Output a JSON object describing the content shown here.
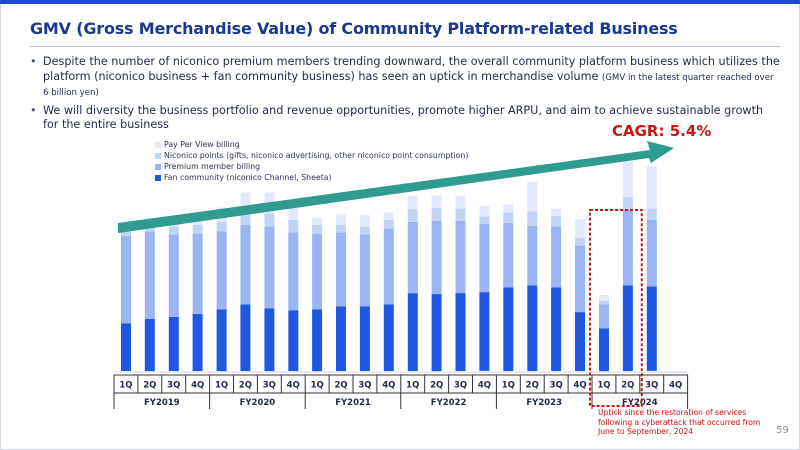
{
  "title": "GMV (Gross Merchandise Value) of Community Platform-related Business",
  "page_number": "59",
  "bullets": [
    {
      "text": "Despite the number of niconico premium members trending downward, the overall community platform business which utilizes the platform (niconico business + fan community business) has seen an uptick in merchandise volume ",
      "small": "(GMV in the latest quarter reached over 6 billion yen)"
    },
    {
      "text": "We will diversity the business portfolio and revenue opportunities, promote higher ARPU, and aim to achieve sustainable growth for the entire business",
      "small": ""
    }
  ],
  "cagr_label": "CAGR: 5.4%",
  "annotation": "Uptick since the restoration of services following a cyberattack that occurred from June to September, 2024",
  "colors": {
    "fan": "#1f58e0",
    "premium": "#9bb4f2",
    "points": "#c3d3f7",
    "ppv": "#e2e9fb",
    "arrow": "#2f9c8f",
    "highlight": "#c41a1a"
  },
  "chart_data": {
    "type": "bar",
    "stacked": true,
    "title": "",
    "xlabel": "",
    "ylabel": "",
    "grid": false,
    "legend": "top-left",
    "quarters": [
      "1Q",
      "2Q",
      "3Q",
      "4Q",
      "1Q",
      "2Q",
      "3Q",
      "4Q",
      "1Q",
      "2Q",
      "3Q",
      "4Q",
      "1Q",
      "2Q",
      "3Q",
      "4Q",
      "1Q",
      "2Q",
      "3Q",
      "4Q",
      "1Q",
      "2Q",
      "3Q",
      "4Q"
    ],
    "years": [
      "FY2019",
      "FY2020",
      "FY2021",
      "FY2022",
      "FY2023",
      "FY2024"
    ],
    "highlight_range": [
      20,
      21
    ],
    "series": [
      {
        "name": "Fan community (niconico Channel, Sheeta)",
        "values": [
          50,
          55,
          57,
          60,
          65,
          70,
          66,
          64,
          65,
          68,
          68,
          70,
          82,
          81,
          82,
          83,
          88,
          90,
          88,
          62,
          45,
          90,
          89,
          0
        ]
      },
      {
        "name": "Premium member billing",
        "values": [
          92,
          92,
          87,
          85,
          82,
          84,
          86,
          82,
          80,
          78,
          76,
          80,
          75,
          77,
          76,
          72,
          68,
          63,
          64,
          70,
          25,
          80,
          70,
          0
        ]
      },
      {
        "name": "Niconico points (gifts, niconico advertising, other niconico point consumption)",
        "values": [
          8,
          9,
          8,
          9,
          10,
          14,
          14,
          13,
          9,
          8,
          8,
          9,
          13,
          14,
          13,
          8,
          11,
          15,
          11,
          8,
          4,
          13,
          12,
          0
        ]
      },
      {
        "name": "Pay Per View billing",
        "values": [
          6,
          5,
          5,
          10,
          15,
          20,
          22,
          20,
          7,
          11,
          12,
          8,
          14,
          13,
          13,
          11,
          8,
          31,
          8,
          20,
          6,
          38,
          45,
          0
        ]
      }
    ]
  }
}
